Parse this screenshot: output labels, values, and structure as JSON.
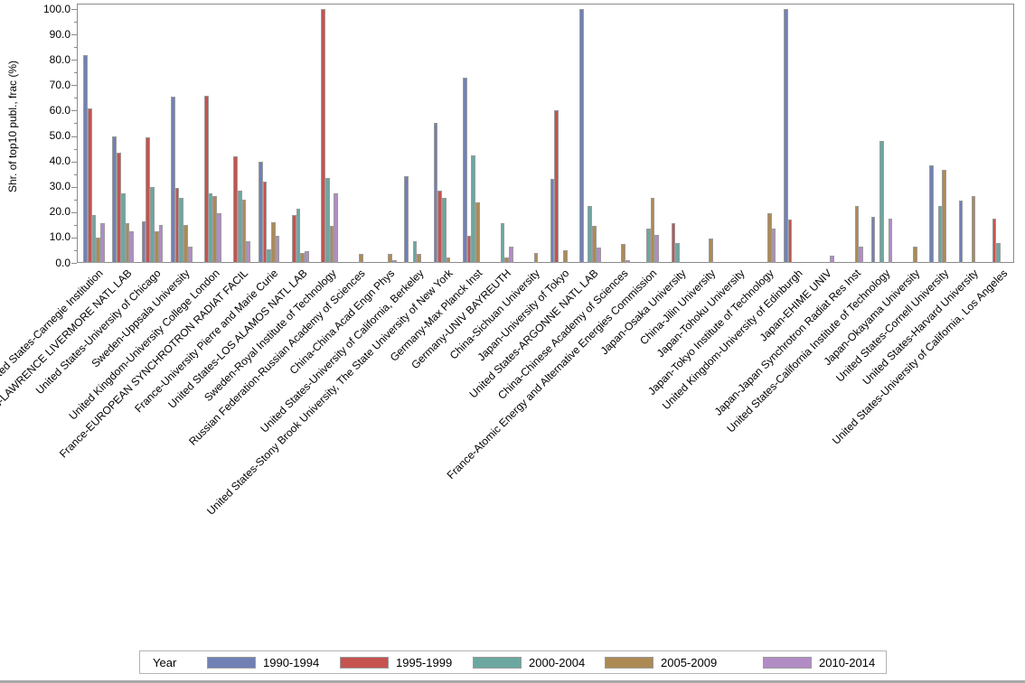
{
  "chart_data": {
    "type": "bar",
    "title": "",
    "xlabel": "",
    "ylabel": "Shr. of top10 publ., frac (%)",
    "ylim": [
      0,
      100
    ],
    "ytick_step": 10,
    "ytick_labels": [
      "0.0",
      "10.0",
      "20.0",
      "30.0",
      "40.0",
      "50.0",
      "60.0",
      "70.0",
      "80.0",
      "90.0",
      "100.0"
    ],
    "grid": false,
    "legend_position": "bottom",
    "legend_title": "Year",
    "categories": [
      "United States-Carnegie Institution",
      "United States-LAWRENCE LIVERMORE NATL LAB",
      "United States-University of Chicago",
      "Sweden-Uppsala University",
      "United Kingdom-University College London",
      "France-EUROPEAN SYNCHROTRON RADIAT FACIL",
      "France-University Pierre and Marie Curie",
      "United States-LOS ALAMOS NATL LAB",
      "Sweden-Royal Institute of Technology",
      "Russian Federation-Russian Academy of Sciences",
      "China-China Acad Engn Phys",
      "United States-University of California, Berkeley",
      "United States-Stony Brook University, The State University of New York",
      "Germany-Max Planck Inst",
      "Germany-UNIV BAYREUTH",
      "China-Sichuan University",
      "Japan-University of Tokyo",
      "United States-ARGONNE NATL LAB",
      "China-Chinese Academy of Sciences",
      "France-Atomic Energy and Alternative Energies Commission",
      "Japan-Osaka University",
      "China-Jilin University",
      "Japan-Tohoku University",
      "Japan-Tokyo Institute of Technology",
      "United Kingdom-University of Edinburgh",
      "Japan-EHIME UNIV",
      "Japan-Japan Synchrotron Radiat Res Inst",
      "United States-California Institute of Technology",
      "Japan-Okayama University",
      "United States-Cornell University",
      "United States-Harvard University",
      "United States-University of California, Los Angeles"
    ],
    "series": [
      {
        "name": "1990-1994",
        "color": "#7181b5",
        "values": [
          82,
          50,
          16.5,
          65.5,
          null,
          null,
          40,
          null,
          null,
          null,
          null,
          34,
          55,
          73,
          null,
          null,
          33,
          100,
          null,
          null,
          null,
          null,
          null,
          null,
          100,
          null,
          null,
          18,
          null,
          38.5,
          24.5,
          null
        ]
      },
      {
        "name": "1995-1999",
        "color": "#c5534f",
        "values": [
          61,
          43.5,
          49.5,
          29.5,
          66,
          42,
          32,
          19,
          100,
          null,
          null,
          null,
          28.5,
          10.5,
          null,
          null,
          60,
          null,
          null,
          null,
          15.5,
          null,
          null,
          null,
          17,
          null,
          null,
          null,
          null,
          null,
          null,
          17.5
        ]
      },
      {
        "name": "2000-2004",
        "color": "#6ba7a0",
        "values": [
          19,
          27.5,
          30,
          25.5,
          27.5,
          28.5,
          5.5,
          21.5,
          33.5,
          null,
          null,
          8.5,
          25.5,
          42.5,
          15.5,
          null,
          null,
          22.5,
          null,
          13.5,
          8,
          null,
          null,
          null,
          null,
          null,
          null,
          48,
          null,
          22.5,
          null,
          8
        ]
      },
      {
        "name": "2005-2009",
        "color": "#ad8a54",
        "values": [
          10,
          15.5,
          12.5,
          15,
          26.5,
          25,
          16,
          4,
          14.5,
          3.5,
          3.5,
          3.5,
          2,
          24,
          2,
          4,
          5,
          14.5,
          7.5,
          25.5,
          null,
          9.5,
          null,
          19.5,
          null,
          null,
          22.5,
          null,
          6.5,
          36.5,
          26.5,
          null
        ]
      },
      {
        "name": "2010-2014",
        "color": "#b18cc5",
        "values": [
          15.5,
          12.5,
          15,
          6.5,
          19.5,
          8.5,
          10.5,
          4.5,
          27.5,
          null,
          1,
          null,
          null,
          null,
          6.5,
          null,
          null,
          6,
          1,
          11,
          null,
          null,
          null,
          13.5,
          null,
          3,
          6.5,
          17.5,
          null,
          null,
          null,
          null
        ]
      }
    ]
  }
}
